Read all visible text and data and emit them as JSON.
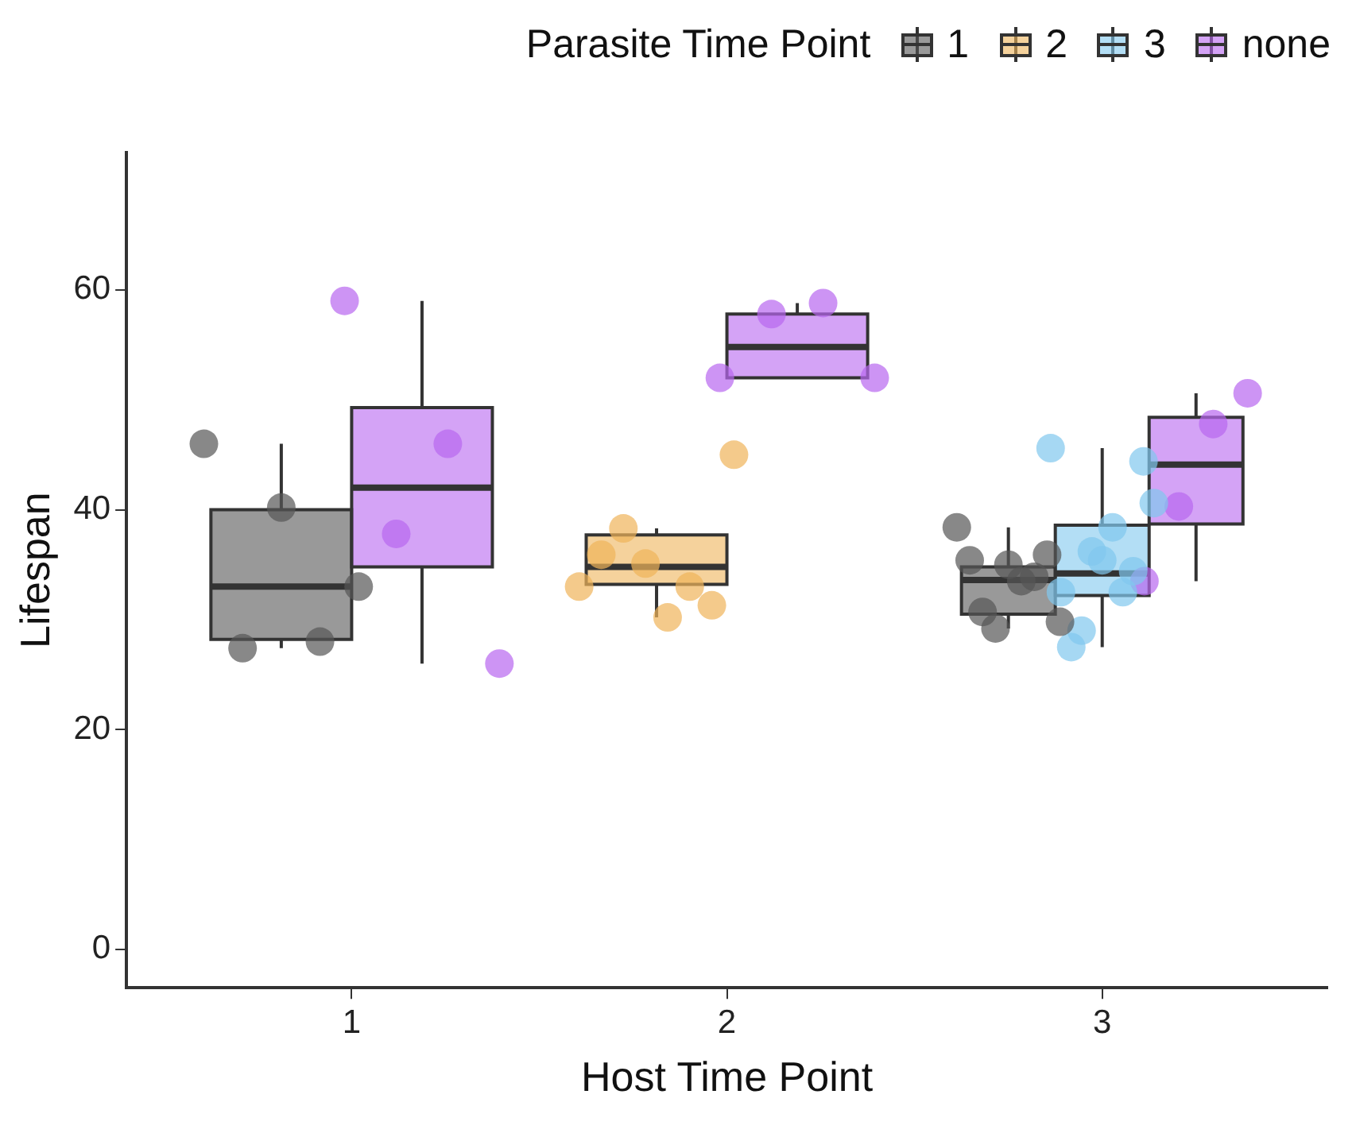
{
  "chart_data": {
    "type": "box",
    "xlabel": "Host Time Point",
    "ylabel": "Lifespan",
    "legend_title": "Parasite Time Point",
    "legend": "top",
    "grid": false,
    "categories": [
      "1",
      "2",
      "3"
    ],
    "ylim": [
      -3.5,
      72.5
    ],
    "yticks": [
      0,
      20,
      40,
      60
    ],
    "series": [
      {
        "name": "1",
        "color": "#555555",
        "boxes": [
          {
            "low": 27.4,
            "q1": 28.2,
            "median": 33,
            "q3": 40,
            "high": 46
          },
          null,
          {
            "low": 29.2,
            "q1": 30.5,
            "median": 33.6,
            "q3": 34.8,
            "high": 38.4
          }
        ]
      },
      {
        "name": "2",
        "color": "#efb45a",
        "boxes": [
          null,
          {
            "low": 30.2,
            "q1": 33.2,
            "median": 34.8,
            "q3": 37.7,
            "high": 38.3
          },
          null
        ]
      },
      {
        "name": "3",
        "color": "#80c8ee",
        "boxes": [
          null,
          null,
          {
            "low": 27.5,
            "q1": 32.2,
            "median": 34.2,
            "q3": 38.6,
            "high": 45.6
          }
        ]
      },
      {
        "name": "none",
        "color": "#b866f0",
        "boxes": [
          {
            "low": 26,
            "q1": 34.8,
            "median": 42,
            "q3": 49.3,
            "high": 59
          },
          {
            "low": 52,
            "q1": 52,
            "median": 54.8,
            "q3": 57.8,
            "high": 58.8
          },
          {
            "low": 33.5,
            "q1": 38.7,
            "median": 44.1,
            "q3": 48.4,
            "high": 50.6
          }
        ]
      },
      {
        "type": "scatter",
        "color": "#555555",
        "x": [
          "1",
          "1",
          "1",
          "1",
          "1",
          "3",
          "3",
          "3",
          "3",
          "3",
          "3",
          "3",
          "3",
          "3"
        ],
        "values": [
          46,
          27.4,
          40.2,
          28,
          33,
          38.4,
          35.4,
          30.7,
          29.2,
          35,
          33.5,
          33.9,
          35.9,
          29.8
        ]
      },
      {
        "type": "scatter",
        "color": "#efb45a",
        "x": [
          "2",
          "2",
          "2",
          "2",
          "2",
          "2",
          "2",
          "2"
        ],
        "values": [
          33,
          35.9,
          38.3,
          35.1,
          30.2,
          33,
          31.3,
          45
        ]
      },
      {
        "type": "scatter",
        "color": "#80c8ee",
        "x": [
          "3",
          "3",
          "3",
          "3",
          "3",
          "3",
          "3",
          "3",
          "3",
          "3",
          "3"
        ],
        "values": [
          45.6,
          32.5,
          27.5,
          29,
          36.2,
          35.4,
          38.4,
          32.5,
          34.4,
          44.4,
          40.6
        ]
      },
      {
        "type": "scatter",
        "color": "#b866f0",
        "x": [
          "1",
          "1",
          "1",
          "1",
          "2",
          "2",
          "2",
          "2",
          "3",
          "3",
          "3",
          "3"
        ],
        "values": [
          59,
          37.8,
          46,
          26,
          52,
          57.8,
          58.8,
          52,
          33.5,
          40.3,
          47.8,
          50.6
        ]
      }
    ]
  }
}
